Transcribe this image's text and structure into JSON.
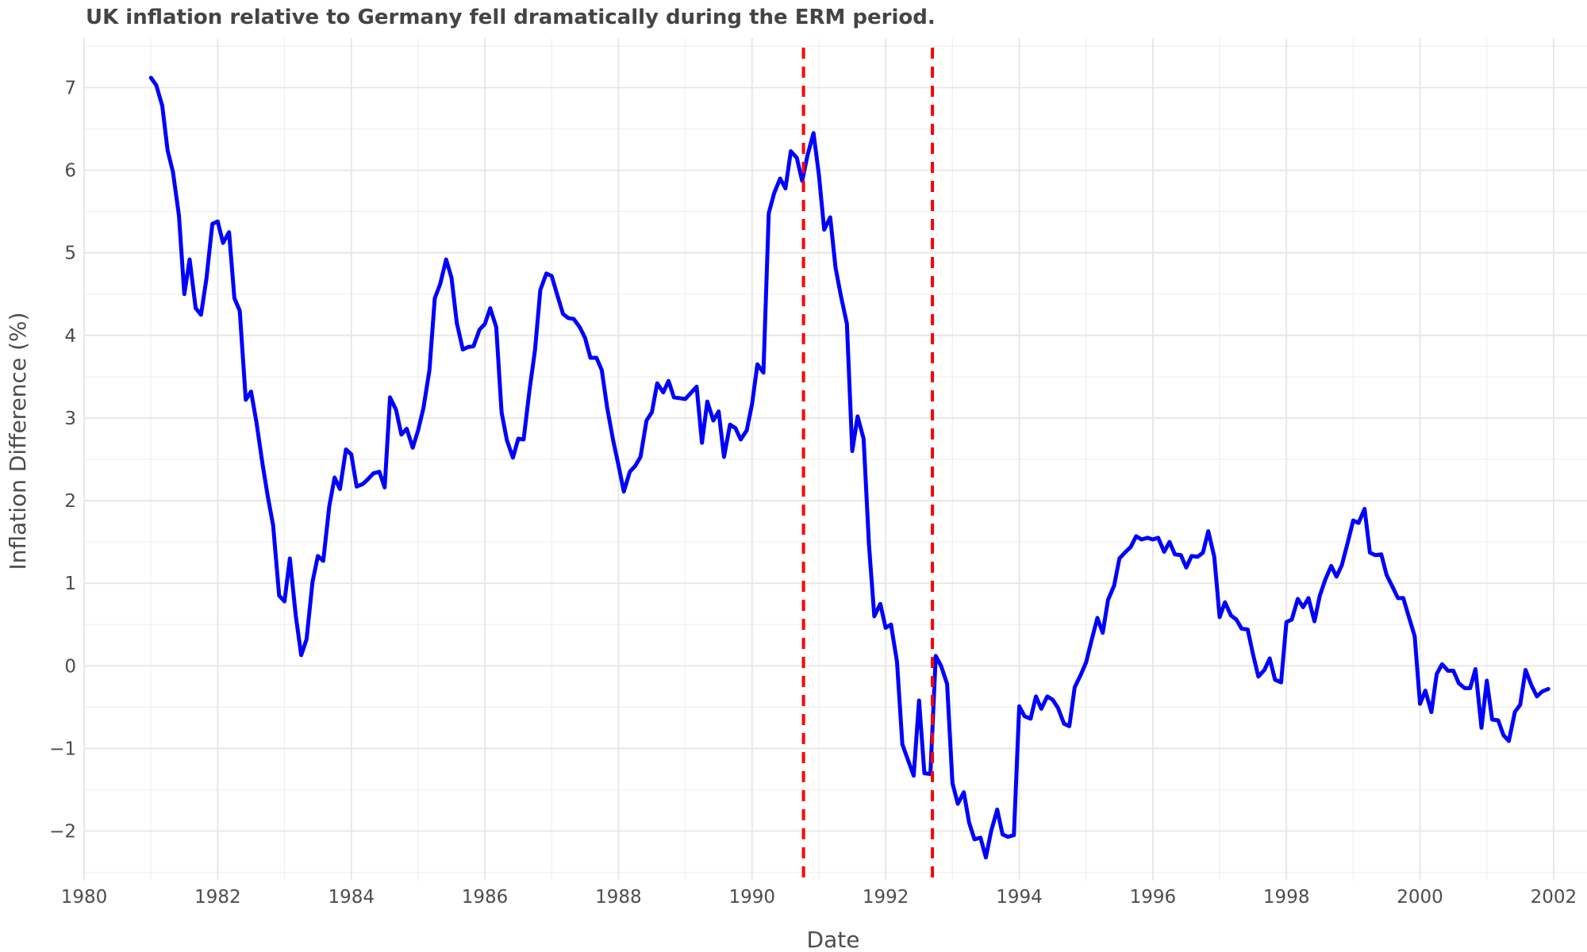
{
  "chart_data": {
    "type": "line",
    "title": "UK inflation relative to Germany fell dramatically during the ERM period.",
    "xlabel": "Date",
    "ylabel": "Inflation Difference (%)",
    "xlim": [
      1980,
      2002.5
    ],
    "ylim": [
      -2.6,
      7.6
    ],
    "x_ticks": [
      1980,
      1982,
      1984,
      1986,
      1988,
      1990,
      1992,
      1994,
      1996,
      1998,
      2000,
      2002
    ],
    "y_ticks": [
      -2,
      -1,
      0,
      1,
      2,
      3,
      4,
      5,
      6,
      7
    ],
    "y_tick_labels": [
      "−2",
      "−1",
      "0",
      "1",
      "2",
      "3",
      "4",
      "5",
      "6",
      "7"
    ],
    "grid": true,
    "colors": {
      "series": "#0000ff",
      "reference": "#ff0000",
      "grid": "#e6e6e6"
    },
    "reference_lines": [
      {
        "x": 1990.77,
        "style": "dashed"
      },
      {
        "x": 1992.7,
        "style": "dashed"
      }
    ],
    "series": [
      {
        "points": [
          [
            1981.0,
            7.12
          ],
          [
            1981.08,
            7.03
          ],
          [
            1981.17,
            6.78
          ],
          [
            1981.25,
            6.24
          ],
          [
            1981.33,
            5.98
          ],
          [
            1981.42,
            5.45
          ],
          [
            1981.5,
            4.5
          ],
          [
            1981.58,
            4.92
          ],
          [
            1981.67,
            4.33
          ],
          [
            1981.75,
            4.25
          ],
          [
            1981.83,
            4.68
          ],
          [
            1981.92,
            5.35
          ],
          [
            1982.0,
            5.38
          ],
          [
            1982.08,
            5.12
          ],
          [
            1982.17,
            5.25
          ],
          [
            1982.25,
            4.45
          ],
          [
            1982.33,
            4.3
          ],
          [
            1982.42,
            3.22
          ],
          [
            1982.5,
            3.32
          ],
          [
            1982.58,
            2.95
          ],
          [
            1982.67,
            2.45
          ],
          [
            1982.75,
            2.05
          ],
          [
            1982.83,
            1.7
          ],
          [
            1982.92,
            0.85
          ],
          [
            1983.0,
            0.78
          ],
          [
            1983.08,
            1.3
          ],
          [
            1983.17,
            0.6
          ],
          [
            1983.25,
            0.13
          ],
          [
            1983.33,
            0.32
          ],
          [
            1983.42,
            1.02
          ],
          [
            1983.5,
            1.33
          ],
          [
            1983.58,
            1.27
          ],
          [
            1983.67,
            1.93
          ],
          [
            1983.75,
            2.28
          ],
          [
            1983.83,
            2.14
          ],
          [
            1983.92,
            2.62
          ],
          [
            1984.0,
            2.56
          ],
          [
            1984.08,
            2.17
          ],
          [
            1984.17,
            2.2
          ],
          [
            1984.25,
            2.26
          ],
          [
            1984.33,
            2.33
          ],
          [
            1984.42,
            2.35
          ],
          [
            1984.5,
            2.16
          ],
          [
            1984.58,
            3.25
          ],
          [
            1984.67,
            3.1
          ],
          [
            1984.75,
            2.8
          ],
          [
            1984.83,
            2.87
          ],
          [
            1984.92,
            2.64
          ],
          [
            1985.0,
            2.85
          ],
          [
            1985.08,
            3.12
          ],
          [
            1985.17,
            3.58
          ],
          [
            1985.25,
            4.45
          ],
          [
            1985.33,
            4.62
          ],
          [
            1985.42,
            4.92
          ],
          [
            1985.5,
            4.7
          ],
          [
            1985.58,
            4.15
          ],
          [
            1985.67,
            3.83
          ],
          [
            1985.75,
            3.86
          ],
          [
            1985.83,
            3.87
          ],
          [
            1985.92,
            4.07
          ],
          [
            1986.0,
            4.14
          ],
          [
            1986.08,
            4.33
          ],
          [
            1986.17,
            4.1
          ],
          [
            1986.25,
            3.07
          ],
          [
            1986.33,
            2.73
          ],
          [
            1986.42,
            2.52
          ],
          [
            1986.5,
            2.75
          ],
          [
            1986.58,
            2.74
          ],
          [
            1986.67,
            3.35
          ],
          [
            1986.75,
            3.82
          ],
          [
            1986.83,
            4.55
          ],
          [
            1986.92,
            4.75
          ],
          [
            1987.0,
            4.72
          ],
          [
            1987.08,
            4.5
          ],
          [
            1987.17,
            4.26
          ],
          [
            1987.25,
            4.21
          ],
          [
            1987.33,
            4.2
          ],
          [
            1987.42,
            4.1
          ],
          [
            1987.5,
            3.97
          ],
          [
            1987.58,
            3.73
          ],
          [
            1987.67,
            3.73
          ],
          [
            1987.75,
            3.58
          ],
          [
            1987.83,
            3.13
          ],
          [
            1987.92,
            2.73
          ],
          [
            1988.0,
            2.43
          ],
          [
            1988.08,
            2.11
          ],
          [
            1988.17,
            2.35
          ],
          [
            1988.25,
            2.42
          ],
          [
            1988.33,
            2.53
          ],
          [
            1988.42,
            2.97
          ],
          [
            1988.5,
            3.07
          ],
          [
            1988.58,
            3.42
          ],
          [
            1988.67,
            3.31
          ],
          [
            1988.75,
            3.45
          ],
          [
            1988.83,
            3.25
          ],
          [
            1988.92,
            3.24
          ],
          [
            1989.0,
            3.23
          ],
          [
            1989.08,
            3.3
          ],
          [
            1989.17,
            3.38
          ],
          [
            1989.25,
            2.7
          ],
          [
            1989.33,
            3.2
          ],
          [
            1989.42,
            2.97
          ],
          [
            1989.5,
            3.08
          ],
          [
            1989.58,
            2.53
          ],
          [
            1989.67,
            2.92
          ],
          [
            1989.75,
            2.88
          ],
          [
            1989.83,
            2.74
          ],
          [
            1989.92,
            2.85
          ],
          [
            1990.0,
            3.17
          ],
          [
            1990.08,
            3.65
          ],
          [
            1990.17,
            3.55
          ],
          [
            1990.25,
            5.48
          ],
          [
            1990.33,
            5.72
          ],
          [
            1990.42,
            5.9
          ],
          [
            1990.5,
            5.78
          ],
          [
            1990.58,
            6.23
          ],
          [
            1990.67,
            6.15
          ],
          [
            1990.75,
            5.87
          ],
          [
            1990.83,
            6.18
          ],
          [
            1990.92,
            6.45
          ],
          [
            1991.0,
            5.95
          ],
          [
            1991.08,
            5.28
          ],
          [
            1991.17,
            5.43
          ],
          [
            1991.25,
            4.82
          ],
          [
            1991.33,
            4.48
          ],
          [
            1991.42,
            4.14
          ],
          [
            1991.5,
            2.6
          ],
          [
            1991.58,
            3.02
          ],
          [
            1991.67,
            2.75
          ],
          [
            1991.75,
            1.47
          ],
          [
            1991.83,
            0.6
          ],
          [
            1991.92,
            0.75
          ],
          [
            1992.0,
            0.46
          ],
          [
            1992.08,
            0.5
          ],
          [
            1992.17,
            0.05
          ],
          [
            1992.25,
            -0.95
          ],
          [
            1992.33,
            -1.13
          ],
          [
            1992.42,
            -1.33
          ],
          [
            1992.5,
            -0.42
          ],
          [
            1992.58,
            -1.3
          ],
          [
            1992.67,
            -1.31
          ],
          [
            1992.75,
            0.12
          ],
          [
            1992.83,
            0.0
          ],
          [
            1992.92,
            -0.22
          ],
          [
            1993.0,
            -1.42
          ],
          [
            1993.08,
            -1.67
          ],
          [
            1993.17,
            -1.53
          ],
          [
            1993.25,
            -1.9
          ],
          [
            1993.33,
            -2.1
          ],
          [
            1993.42,
            -2.08
          ],
          [
            1993.5,
            -2.32
          ],
          [
            1993.58,
            -2.0
          ],
          [
            1993.67,
            -1.74
          ],
          [
            1993.75,
            -2.04
          ],
          [
            1993.83,
            -2.07
          ],
          [
            1993.92,
            -2.05
          ],
          [
            1994.0,
            -0.49
          ],
          [
            1994.08,
            -0.61
          ],
          [
            1994.17,
            -0.64
          ],
          [
            1994.25,
            -0.37
          ],
          [
            1994.33,
            -0.52
          ],
          [
            1994.42,
            -0.37
          ],
          [
            1994.5,
            -0.41
          ],
          [
            1994.58,
            -0.51
          ],
          [
            1994.67,
            -0.7
          ],
          [
            1994.75,
            -0.73
          ],
          [
            1994.83,
            -0.26
          ],
          [
            1994.92,
            -0.11
          ],
          [
            1995.0,
            0.04
          ],
          [
            1995.08,
            0.3
          ],
          [
            1995.17,
            0.58
          ],
          [
            1995.25,
            0.4
          ],
          [
            1995.33,
            0.8
          ],
          [
            1995.42,
            0.97
          ],
          [
            1995.5,
            1.3
          ],
          [
            1995.58,
            1.37
          ],
          [
            1995.67,
            1.44
          ],
          [
            1995.75,
            1.57
          ],
          [
            1995.83,
            1.53
          ],
          [
            1995.92,
            1.55
          ],
          [
            1996.0,
            1.53
          ],
          [
            1996.08,
            1.55
          ],
          [
            1996.17,
            1.38
          ],
          [
            1996.25,
            1.5
          ],
          [
            1996.33,
            1.35
          ],
          [
            1996.42,
            1.34
          ],
          [
            1996.5,
            1.19
          ],
          [
            1996.58,
            1.33
          ],
          [
            1996.67,
            1.32
          ],
          [
            1996.75,
            1.37
          ],
          [
            1996.83,
            1.63
          ],
          [
            1996.92,
            1.32
          ],
          [
            1997.0,
            0.59
          ],
          [
            1997.08,
            0.77
          ],
          [
            1997.17,
            0.61
          ],
          [
            1997.25,
            0.56
          ],
          [
            1997.33,
            0.45
          ],
          [
            1997.42,
            0.44
          ],
          [
            1997.5,
            0.14
          ],
          [
            1997.58,
            -0.13
          ],
          [
            1997.67,
            -0.05
          ],
          [
            1997.75,
            0.09
          ],
          [
            1997.83,
            -0.17
          ],
          [
            1997.92,
            -0.2
          ],
          [
            1998.0,
            0.53
          ],
          [
            1998.08,
            0.56
          ],
          [
            1998.17,
            0.81
          ],
          [
            1998.25,
            0.71
          ],
          [
            1998.33,
            0.82
          ],
          [
            1998.42,
            0.54
          ],
          [
            1998.5,
            0.85
          ],
          [
            1998.58,
            1.04
          ],
          [
            1998.67,
            1.21
          ],
          [
            1998.75,
            1.08
          ],
          [
            1998.83,
            1.22
          ],
          [
            1998.92,
            1.5
          ],
          [
            1999.0,
            1.76
          ],
          [
            1999.08,
            1.73
          ],
          [
            1999.17,
            1.9
          ],
          [
            1999.25,
            1.37
          ],
          [
            1999.33,
            1.34
          ],
          [
            1999.42,
            1.35
          ],
          [
            1999.5,
            1.1
          ],
          [
            1999.58,
            0.97
          ],
          [
            1999.67,
            0.82
          ],
          [
            1999.75,
            0.82
          ],
          [
            1999.83,
            0.6
          ],
          [
            1999.92,
            0.36
          ],
          [
            2000.0,
            -0.46
          ],
          [
            2000.08,
            -0.3
          ],
          [
            2000.17,
            -0.56
          ],
          [
            2000.25,
            -0.1
          ],
          [
            2000.33,
            0.02
          ],
          [
            2000.42,
            -0.06
          ],
          [
            2000.5,
            -0.06
          ],
          [
            2000.58,
            -0.21
          ],
          [
            2000.67,
            -0.27
          ],
          [
            2000.75,
            -0.27
          ],
          [
            2000.83,
            -0.04
          ],
          [
            2000.92,
            -0.75
          ],
          [
            2001.0,
            -0.18
          ],
          [
            2001.08,
            -0.65
          ],
          [
            2001.17,
            -0.66
          ],
          [
            2001.25,
            -0.84
          ],
          [
            2001.33,
            -0.91
          ],
          [
            2001.42,
            -0.56
          ],
          [
            2001.5,
            -0.47
          ],
          [
            2001.58,
            -0.05
          ],
          [
            2001.67,
            -0.24
          ],
          [
            2001.75,
            -0.37
          ],
          [
            2001.83,
            -0.31
          ],
          [
            2001.92,
            -0.28
          ]
        ]
      }
    ]
  }
}
